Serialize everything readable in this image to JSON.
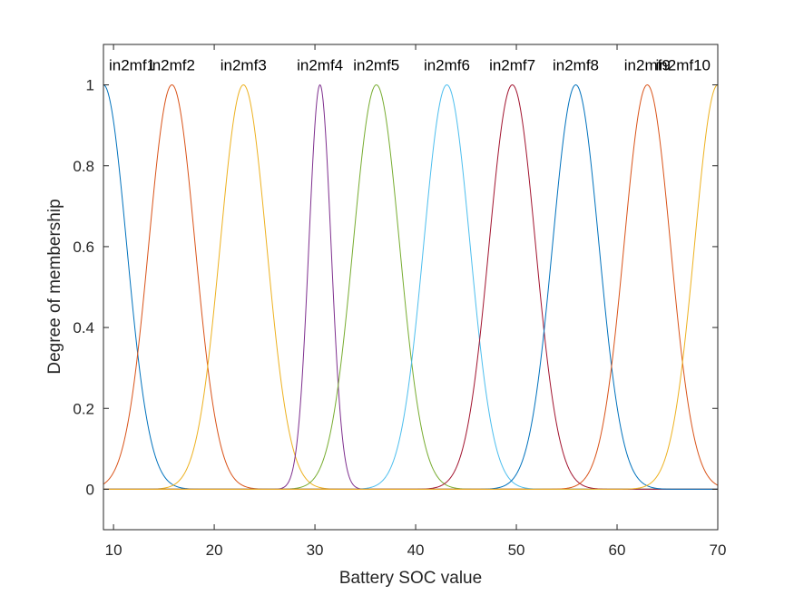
{
  "chart_data": {
    "type": "line",
    "title": "",
    "xlabel": "Battery SOC value",
    "ylabel": "Degree of membership",
    "xlim": [
      9,
      70
    ],
    "ylim": [
      -0.1,
      1.1
    ],
    "xticks": [
      "10",
      "20",
      "30",
      "40",
      "50",
      "60",
      "70"
    ],
    "yticks": [
      "0",
      "0.2",
      "0.4",
      "0.6",
      "0.8",
      "1"
    ],
    "grid": false,
    "legend": "none",
    "membership_type": "gaussian",
    "series": [
      {
        "name": "in2mf1",
        "center": 9.0,
        "sigma": 2.3,
        "color": "#0072BD"
      },
      {
        "name": "in2mf2",
        "center": 15.8,
        "sigma": 2.3,
        "color": "#D95319"
      },
      {
        "name": "in2mf3",
        "center": 22.9,
        "sigma": 2.3,
        "color": "#EDB120"
      },
      {
        "name": "in2mf4",
        "center": 30.5,
        "sigma": 1.1,
        "color": "#7E2F8E"
      },
      {
        "name": "in2mf5",
        "center": 36.1,
        "sigma": 2.3,
        "color": "#77AC30"
      },
      {
        "name": "in2mf6",
        "center": 43.1,
        "sigma": 2.3,
        "color": "#4DBEEE"
      },
      {
        "name": "in2mf7",
        "center": 49.6,
        "sigma": 2.3,
        "color": "#A2142F"
      },
      {
        "name": "in2mf8",
        "center": 55.9,
        "sigma": 2.3,
        "color": "#0072BD"
      },
      {
        "name": "in2mf9",
        "center": 63.0,
        "sigma": 2.3,
        "color": "#D95319"
      },
      {
        "name": "in2mf10",
        "center": 70.0,
        "sigma": 2.3,
        "color": "#EDB120"
      }
    ]
  }
}
